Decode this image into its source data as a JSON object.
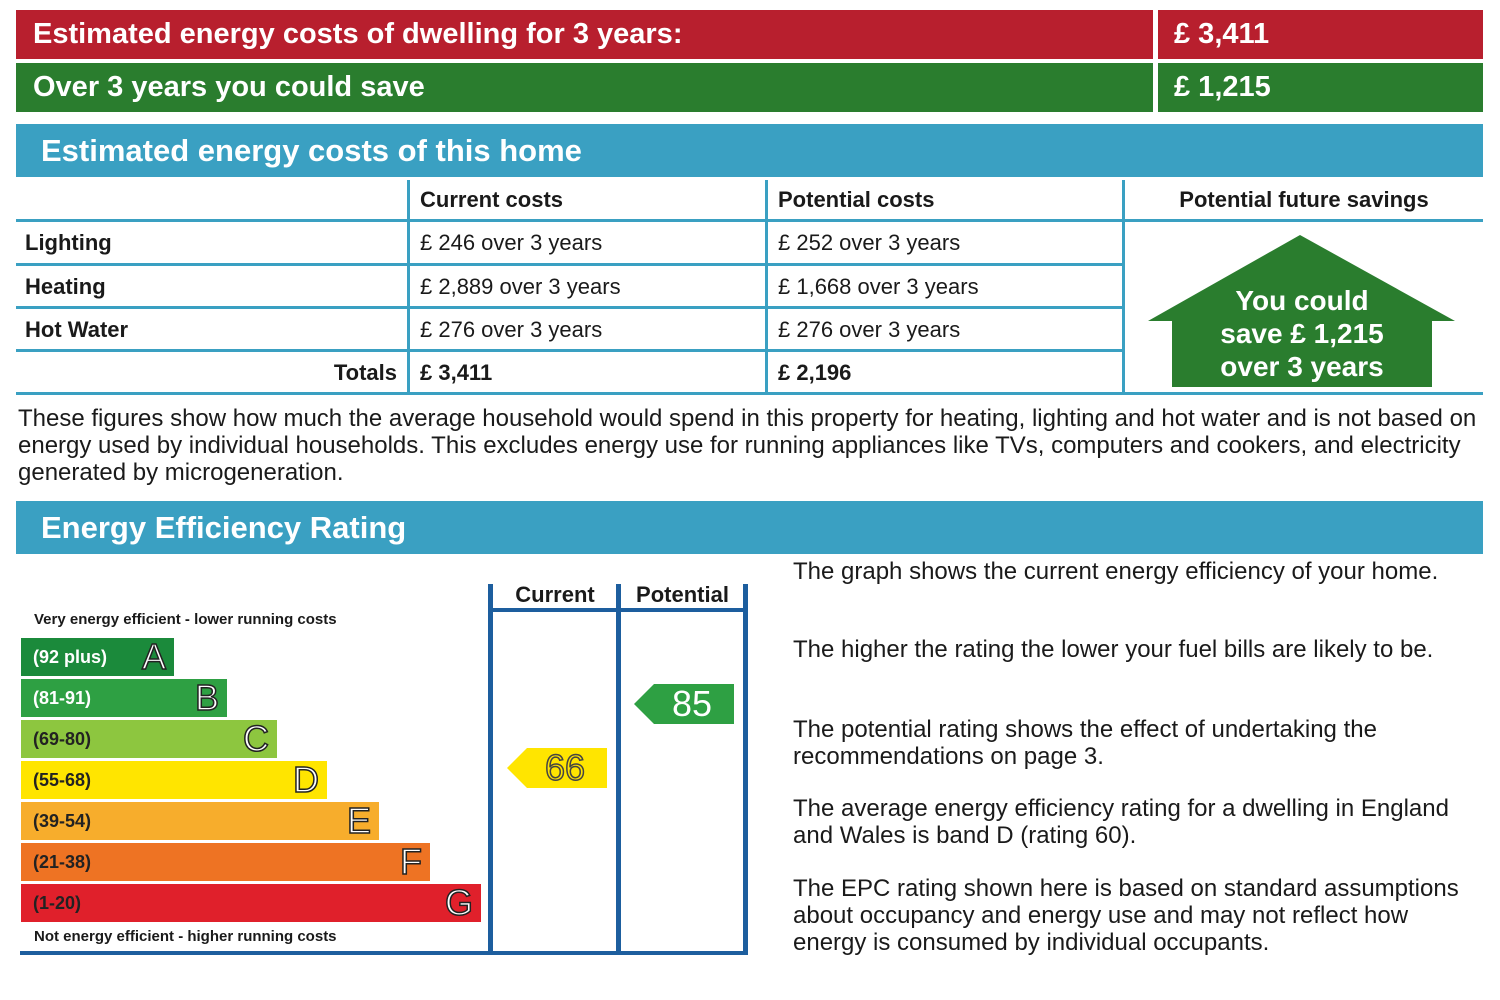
{
  "summary": {
    "cost_label": "Estimated energy costs of dwelling for 3 years:",
    "cost_value": "£ 3,411",
    "save_label": "Over 3 years you could save",
    "save_value": "£ 1,215"
  },
  "costs_section": {
    "title": "Estimated energy costs of this home",
    "headers": [
      "Current costs",
      "Potential costs",
      "Potential future savings"
    ],
    "rows": [
      {
        "label": "Lighting",
        "current": "£ 246 over 3 years",
        "potential": "£ 252 over 3 years"
      },
      {
        "label": "Heating",
        "current": "£ 2,889 over 3 years",
        "potential": "£ 1,668 over 3 years"
      },
      {
        "label": "Hot Water",
        "current": "£ 276 over 3 years",
        "potential": "£ 276 over 3 years"
      }
    ],
    "totals": {
      "label": "Totals",
      "current": "£ 3,411",
      "potential": "£ 2,196"
    },
    "savings_house": {
      "line1": "You could",
      "line2": "save £ 1,215",
      "line3": "over 3 years",
      "color": "#2a7d2e"
    },
    "note": "These figures show how much the average household would spend in this property for heating, lighting and hot water and is not based on energy used by individual households. This excludes energy use for running appliances like TVs, computers and cookers, and electricity generated by microgeneration."
  },
  "rating_section": {
    "title": "Energy Efficiency Rating",
    "top_caption": "Very energy efficient - lower running costs",
    "bottom_caption": "Not energy efficient - higher running costs",
    "bands": [
      {
        "range": "(92 plus)",
        "letter": "A",
        "color": "#1b8a3b"
      },
      {
        "range": "(81-91)",
        "letter": "B",
        "color": "#2ea043"
      },
      {
        "range": "(69-80)",
        "letter": "C",
        "color": "#8dc63f"
      },
      {
        "range": "(55-68)",
        "letter": "D",
        "color": "#ffe500"
      },
      {
        "range": "(39-54)",
        "letter": "E",
        "color": "#f7ad2c"
      },
      {
        "range": "(21-38)",
        "letter": "F",
        "color": "#ee7323"
      },
      {
        "range": "(1-20)",
        "letter": "G",
        "color": "#e0202b"
      }
    ],
    "col_current": "Current",
    "col_potential": "Potential",
    "current_rating": {
      "value": "66",
      "band": "D",
      "color": "#ffe500"
    },
    "potential_rating": {
      "value": "85",
      "band": "B",
      "color": "#2ea043"
    },
    "paragraphs": [
      "The graph shows the current energy efficiency of your home.",
      "The higher the rating the lower your fuel bills are likely to be.",
      "The potential rating shows the effect of undertaking the recommendations on page 3.",
      "The average energy efficiency rating for a dwelling in England and Wales is band D (rating 60).",
      "The EPC rating shown here is based on standard assumptions about occupancy and energy use and may not reflect how energy is consumed by individual occupants."
    ]
  }
}
